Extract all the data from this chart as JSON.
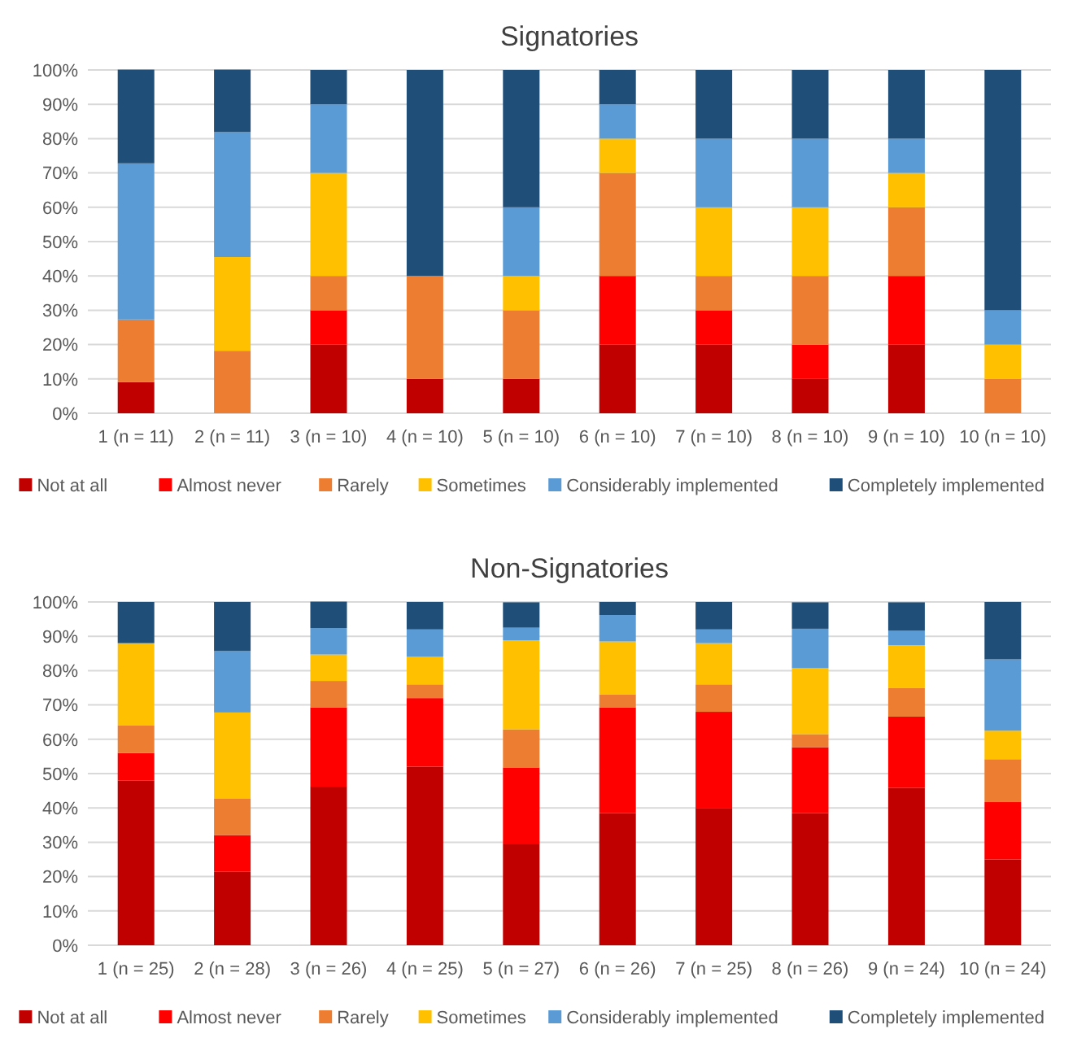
{
  "chart_data": [
    {
      "type": "bar",
      "title": "Signatories",
      "stacked": true,
      "grid": "y",
      "legend": "bottom",
      "categories": [
        "1 (n = 11)",
        "2 (n = 11)",
        "3 (n = 10)",
        "4 (n = 10)",
        "5 (n = 10)",
        "6 (n = 10)",
        "7 (n = 10)",
        "8 (n = 10)",
        "9 (n = 10)",
        "10 (n = 10)"
      ],
      "ylim": [
        0,
        100
      ],
      "yticks": [
        {
          "value": 0,
          "label": "0%"
        },
        {
          "value": 10,
          "label": "10%"
        },
        {
          "value": 20,
          "label": "20%"
        },
        {
          "value": 30,
          "label": "30%"
        },
        {
          "value": 40,
          "label": "40%"
        },
        {
          "value": 50,
          "label": "50%"
        },
        {
          "value": 60,
          "label": "60%"
        },
        {
          "value": 70,
          "label": "70%"
        },
        {
          "value": 80,
          "label": "80%"
        },
        {
          "value": 90,
          "label": "90%"
        },
        {
          "value": 100,
          "label": "100%"
        }
      ],
      "series": [
        {
          "name": "Not at all",
          "color": "#c00000",
          "values": [
            9.1,
            0,
            20,
            10,
            10,
            20,
            20,
            10,
            20,
            0
          ]
        },
        {
          "name": "Almost never",
          "color": "#ff0000",
          "values": [
            0,
            0,
            10,
            0,
            0,
            20,
            10,
            10,
            20,
            0
          ]
        },
        {
          "name": "Rarely",
          "color": "#ed7d31",
          "values": [
            18.2,
            18.2,
            10,
            30,
            20,
            30,
            10,
            20,
            20,
            10
          ]
        },
        {
          "name": "Sometimes",
          "color": "#ffc000",
          "values": [
            0,
            27.3,
            30,
            0,
            10,
            10,
            20,
            20,
            10,
            10
          ]
        },
        {
          "name": "Considerably implemented",
          "color": "#5b9bd5",
          "values": [
            45.5,
            36.4,
            20,
            0,
            20,
            10,
            20,
            20,
            10,
            10
          ]
        },
        {
          "name": "Completely implemented",
          "color": "#1f4e79",
          "values": [
            27.3,
            18.2,
            10,
            60,
            40,
            10,
            20,
            20,
            20,
            70
          ]
        }
      ]
    },
    {
      "type": "bar",
      "title": "Non-Signatories",
      "stacked": true,
      "grid": "y",
      "legend": "bottom",
      "categories": [
        "1 (n = 25)",
        "2 (n = 28)",
        "3 (n = 26)",
        "4 (n = 25)",
        "5 (n = 27)",
        "6 (n = 26)",
        "7 (n = 25)",
        "8 (n = 26)",
        "9 (n = 24)",
        "10 (n = 24)"
      ],
      "ylim": [
        0,
        100
      ],
      "yticks": [
        {
          "value": 0,
          "label": "0%"
        },
        {
          "value": 10,
          "label": "10%"
        },
        {
          "value": 20,
          "label": "20%"
        },
        {
          "value": 30,
          "label": "30%"
        },
        {
          "value": 40,
          "label": "40%"
        },
        {
          "value": 50,
          "label": "50%"
        },
        {
          "value": 60,
          "label": "60%"
        },
        {
          "value": 70,
          "label": "70%"
        },
        {
          "value": 80,
          "label": "80%"
        },
        {
          "value": 90,
          "label": "90%"
        },
        {
          "value": 100,
          "label": "100%"
        }
      ],
      "series": [
        {
          "name": "Not at all",
          "color": "#c00000",
          "values": [
            48,
            21.4,
            46.2,
            52,
            29.6,
            38.5,
            40,
            38.5,
            45.8,
            25
          ]
        },
        {
          "name": "Almost never",
          "color": "#ff0000",
          "values": [
            8,
            10.7,
            23.1,
            20,
            22.2,
            30.8,
            28,
            19.2,
            20.8,
            16.7
          ]
        },
        {
          "name": "Rarely",
          "color": "#ed7d31",
          "values": [
            8,
            10.7,
            7.7,
            4,
            11.1,
            3.8,
            8,
            3.8,
            8.3,
            12.5
          ]
        },
        {
          "name": "Sometimes",
          "color": "#ffc000",
          "values": [
            24,
            25,
            7.7,
            8,
            25.9,
            15.4,
            12,
            19.2,
            12.5,
            8.3
          ]
        },
        {
          "name": "Considerably implemented",
          "color": "#5b9bd5",
          "values": [
            0,
            17.9,
            7.7,
            8,
            3.7,
            7.7,
            4,
            11.5,
            4.2,
            20.8
          ]
        },
        {
          "name": "Completely implemented",
          "color": "#1f4e79",
          "values": [
            12,
            14.3,
            7.7,
            8,
            7.4,
            3.8,
            8,
            7.7,
            8.3,
            16.7
          ]
        }
      ]
    }
  ]
}
